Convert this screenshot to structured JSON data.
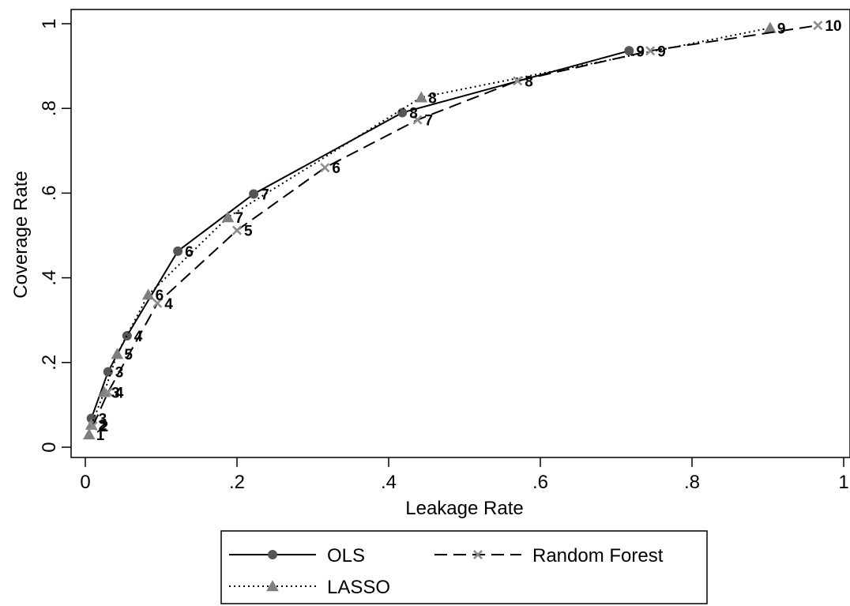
{
  "chart_data": {
    "type": "line",
    "xlabel": "Leakage Rate",
    "ylabel": "Coverage Rate",
    "xlim": [
      0,
      1
    ],
    "ylim": [
      0,
      1
    ],
    "x_ticks": [
      0,
      0.2,
      0.4,
      0.6,
      0.8,
      1
    ],
    "x_tick_labels": [
      "0",
      ".2",
      ".4",
      ".6",
      ".8",
      "1"
    ],
    "y_ticks": [
      0,
      0.2,
      0.4,
      0.6,
      0.8,
      1
    ],
    "y_tick_labels": [
      "0",
      ".2",
      ".4",
      ".6",
      ".8",
      "1"
    ],
    "grid": false,
    "legend_position": "bottom",
    "series": [
      {
        "name": "OLS",
        "line": "solid",
        "marker": "circle",
        "color": "#000000",
        "marker_color": "#555555",
        "points": [
          {
            "x": 0.008,
            "y": 0.068,
            "label": "3"
          },
          {
            "x": 0.03,
            "y": 0.178,
            "label": "3"
          },
          {
            "x": 0.055,
            "y": 0.263,
            "label": "4"
          },
          {
            "x": 0.122,
            "y": 0.463,
            "label": "6"
          },
          {
            "x": 0.222,
            "y": 0.598,
            "label": "7"
          },
          {
            "x": 0.418,
            "y": 0.79,
            "label": "8"
          },
          {
            "x": 0.717,
            "y": 0.936,
            "label": "9"
          }
        ]
      },
      {
        "name": "LASSO",
        "line": "dotted",
        "marker": "triangle",
        "color": "#000000",
        "marker_color": "#7f7f7f",
        "points": [
          {
            "x": 0.005,
            "y": 0.03,
            "label": "1"
          },
          {
            "x": 0.008,
            "y": 0.053,
            "label": "2"
          },
          {
            "x": 0.025,
            "y": 0.13,
            "label": "3"
          },
          {
            "x": 0.042,
            "y": 0.22,
            "label": "5"
          },
          {
            "x": 0.083,
            "y": 0.36,
            "label": "6"
          },
          {
            "x": 0.188,
            "y": 0.543,
            "label": "7"
          },
          {
            "x": 0.443,
            "y": 0.826,
            "label": "8"
          },
          {
            "x": 0.903,
            "y": 0.99,
            "label": "9"
          }
        ]
      },
      {
        "name": "Random Forest",
        "line": "dashed",
        "marker": "x",
        "color": "#000000",
        "marker_color": "#8c8c8c",
        "points": [
          {
            "x": 0.01,
            "y": 0.05,
            "label": "2"
          },
          {
            "x": 0.03,
            "y": 0.13,
            "label": "4"
          },
          {
            "x": 0.095,
            "y": 0.34,
            "label": "4"
          },
          {
            "x": 0.2,
            "y": 0.512,
            "label": "5"
          },
          {
            "x": 0.316,
            "y": 0.66,
            "label": "6"
          },
          {
            "x": 0.438,
            "y": 0.773,
            "label": "7"
          },
          {
            "x": 0.57,
            "y": 0.865,
            "label": "8"
          },
          {
            "x": 0.745,
            "y": 0.936,
            "label": "9"
          },
          {
            "x": 0.966,
            "y": 0.996,
            "label": "10"
          }
        ]
      }
    ]
  }
}
